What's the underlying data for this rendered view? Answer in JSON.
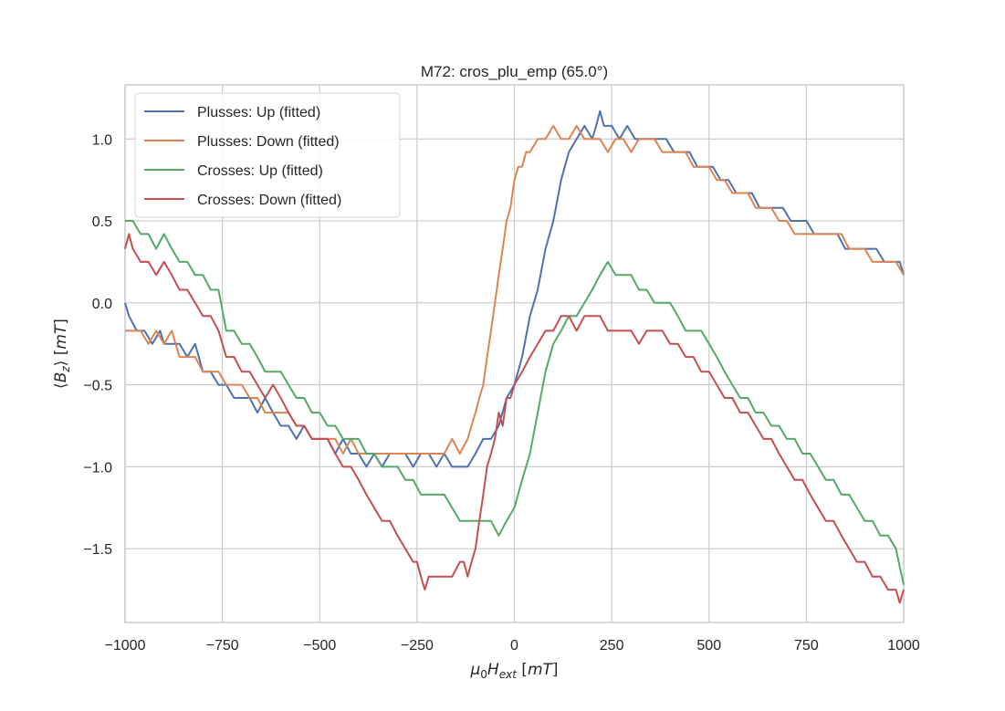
{
  "chart_data": {
    "type": "line",
    "title": "M72: cros_plu_emp (65.0°)",
    "xlabel": "μ₀H_ext [mT]",
    "ylabel": "⟨B_z⟩ [mT]",
    "xlim": [
      -1000,
      1000
    ],
    "ylim": [
      -1.95,
      1.33
    ],
    "xticks": [
      -1000,
      -750,
      -500,
      -250,
      0,
      250,
      500,
      750,
      1000
    ],
    "xtick_labels": [
      "−1000",
      "−750",
      "−500",
      "−250",
      "0",
      "250",
      "500",
      "750",
      "1000"
    ],
    "yticks": [
      1.0,
      0.5,
      0.0,
      -0.5,
      -1.0,
      -1.5
    ],
    "ytick_labels": [
      "1.0",
      "0.5",
      "0.0",
      "−0.5",
      "−1.0",
      "−1.5"
    ],
    "grid": true,
    "legend_position": "top-left",
    "series": [
      {
        "name": "Plusses: Up (fitted)",
        "color": "#4c72b0",
        "x": [
          -1000,
          -990,
          -970,
          -950,
          -930,
          -910,
          -900,
          -880,
          -860,
          -840,
          -820,
          -800,
          -780,
          -760,
          -740,
          -720,
          -700,
          -680,
          -660,
          -640,
          -620,
          -600,
          -580,
          -560,
          -540,
          -520,
          -500,
          -480,
          -460,
          -440,
          -420,
          -400,
          -380,
          -360,
          -340,
          -320,
          -300,
          -280,
          -260,
          -240,
          -220,
          -200,
          -180,
          -160,
          -140,
          -120,
          -100,
          -80,
          -60,
          -40,
          -20,
          0,
          20,
          40,
          60,
          80,
          100,
          120,
          140,
          160,
          180,
          200,
          210,
          220,
          230,
          250,
          270,
          290,
          310,
          330,
          350,
          370,
          390,
          410,
          430,
          450,
          470,
          490,
          510,
          530,
          550,
          570,
          590,
          610,
          630,
          650,
          670,
          690,
          710,
          730,
          750,
          770,
          790,
          810,
          830,
          850,
          870,
          890,
          910,
          930,
          950,
          970,
          990,
          1000
        ],
        "y": [
          0.0,
          -0.08,
          -0.17,
          -0.17,
          -0.25,
          -0.17,
          -0.25,
          -0.25,
          -0.25,
          -0.33,
          -0.25,
          -0.42,
          -0.42,
          -0.5,
          -0.5,
          -0.58,
          -0.58,
          -0.58,
          -0.67,
          -0.58,
          -0.67,
          -0.75,
          -0.75,
          -0.83,
          -0.75,
          -0.83,
          -0.83,
          -0.83,
          -0.92,
          -0.83,
          -0.92,
          -0.92,
          -1.0,
          -0.92,
          -1.0,
          -0.92,
          -0.92,
          -0.92,
          -1.0,
          -0.92,
          -0.92,
          -1.0,
          -0.92,
          -1.0,
          -1.0,
          -1.0,
          -0.92,
          -0.83,
          -0.83,
          -0.75,
          -0.58,
          -0.5,
          -0.33,
          -0.08,
          0.08,
          0.33,
          0.5,
          0.75,
          0.92,
          1.0,
          1.08,
          1.0,
          1.08,
          1.17,
          1.08,
          1.08,
          1.0,
          1.08,
          1.0,
          1.0,
          1.0,
          1.0,
          1.0,
          0.92,
          0.92,
          0.92,
          0.83,
          0.83,
          0.83,
          0.75,
          0.75,
          0.67,
          0.67,
          0.67,
          0.58,
          0.58,
          0.58,
          0.58,
          0.5,
          0.5,
          0.5,
          0.42,
          0.42,
          0.42,
          0.42,
          0.33,
          0.33,
          0.33,
          0.33,
          0.33,
          0.25,
          0.25,
          0.25,
          0.17
        ]
      },
      {
        "name": "Plusses: Down (fitted)",
        "color": "#dd8452",
        "x": [
          -1000,
          -980,
          -960,
          -940,
          -920,
          -900,
          -880,
          -860,
          -840,
          -820,
          -800,
          -780,
          -760,
          -740,
          -720,
          -700,
          -680,
          -660,
          -640,
          -620,
          -600,
          -580,
          -560,
          -540,
          -520,
          -500,
          -480,
          -460,
          -440,
          -420,
          -400,
          -380,
          -360,
          -340,
          -320,
          -300,
          -280,
          -260,
          -240,
          -220,
          -200,
          -180,
          -160,
          -140,
          -120,
          -110,
          -100,
          -90,
          -80,
          -70,
          -60,
          -50,
          -40,
          -30,
          -20,
          -10,
          0,
          10,
          20,
          30,
          40,
          60,
          80,
          100,
          120,
          140,
          160,
          180,
          200,
          220,
          240,
          260,
          280,
          300,
          320,
          340,
          360,
          380,
          400,
          420,
          440,
          460,
          480,
          500,
          520,
          540,
          560,
          580,
          600,
          620,
          640,
          660,
          680,
          700,
          720,
          740,
          760,
          780,
          800,
          820,
          840,
          860,
          880,
          900,
          920,
          940,
          960,
          980,
          1000
        ],
        "y": [
          -0.17,
          -0.17,
          -0.17,
          -0.25,
          -0.17,
          -0.25,
          -0.17,
          -0.33,
          -0.33,
          -0.33,
          -0.42,
          -0.42,
          -0.42,
          -0.5,
          -0.5,
          -0.5,
          -0.58,
          -0.58,
          -0.67,
          -0.67,
          -0.67,
          -0.67,
          -0.75,
          -0.75,
          -0.83,
          -0.83,
          -0.83,
          -0.83,
          -0.92,
          -0.83,
          -0.92,
          -0.92,
          -0.92,
          -0.92,
          -0.92,
          -0.92,
          -0.92,
          -0.92,
          -0.92,
          -0.92,
          -0.92,
          -0.92,
          -0.83,
          -0.92,
          -0.83,
          -0.75,
          -0.67,
          -0.58,
          -0.5,
          -0.33,
          -0.17,
          0.0,
          0.17,
          0.33,
          0.5,
          0.58,
          0.75,
          0.83,
          0.83,
          0.92,
          0.92,
          1.0,
          1.0,
          1.08,
          1.0,
          1.0,
          1.08,
          1.0,
          1.0,
          1.0,
          0.92,
          1.0,
          1.0,
          0.92,
          1.0,
          1.0,
          1.0,
          0.92,
          0.92,
          0.92,
          0.92,
          0.83,
          0.83,
          0.83,
          0.75,
          0.75,
          0.67,
          0.67,
          0.67,
          0.58,
          0.58,
          0.58,
          0.5,
          0.5,
          0.42,
          0.42,
          0.42,
          0.42,
          0.42,
          0.42,
          0.42,
          0.33,
          0.33,
          0.33,
          0.25,
          0.25,
          0.25,
          0.25,
          0.17
        ]
      },
      {
        "name": "Crosses: Up (fitted)",
        "color": "#55a868",
        "x": [
          -1000,
          -980,
          -960,
          -940,
          -920,
          -900,
          -880,
          -860,
          -840,
          -820,
          -800,
          -780,
          -760,
          -740,
          -720,
          -700,
          -680,
          -660,
          -640,
          -620,
          -600,
          -580,
          -560,
          -540,
          -520,
          -500,
          -480,
          -460,
          -440,
          -420,
          -400,
          -380,
          -360,
          -340,
          -320,
          -300,
          -280,
          -260,
          -240,
          -220,
          -200,
          -180,
          -160,
          -140,
          -120,
          -100,
          -80,
          -60,
          -40,
          -20,
          0,
          20,
          40,
          60,
          80,
          100,
          120,
          140,
          160,
          180,
          200,
          220,
          240,
          260,
          280,
          300,
          320,
          340,
          360,
          380,
          400,
          420,
          440,
          460,
          480,
          500,
          520,
          540,
          560,
          580,
          600,
          620,
          640,
          660,
          680,
          700,
          720,
          740,
          760,
          780,
          800,
          820,
          840,
          860,
          880,
          900,
          920,
          940,
          960,
          980,
          1000
        ],
        "y": [
          0.5,
          0.5,
          0.42,
          0.42,
          0.33,
          0.42,
          0.33,
          0.25,
          0.25,
          0.17,
          0.17,
          0.08,
          0.08,
          -0.17,
          -0.17,
          -0.25,
          -0.25,
          -0.33,
          -0.42,
          -0.42,
          -0.42,
          -0.5,
          -0.58,
          -0.58,
          -0.67,
          -0.67,
          -0.75,
          -0.75,
          -0.83,
          -0.83,
          -0.83,
          -0.92,
          -0.92,
          -1.0,
          -1.0,
          -1.0,
          -1.08,
          -1.08,
          -1.17,
          -1.17,
          -1.17,
          -1.17,
          -1.25,
          -1.33,
          -1.33,
          -1.33,
          -1.33,
          -1.33,
          -1.42,
          -1.33,
          -1.25,
          -1.08,
          -0.92,
          -0.67,
          -0.42,
          -0.25,
          -0.17,
          -0.08,
          -0.08,
          0.0,
          0.08,
          0.17,
          0.25,
          0.17,
          0.17,
          0.17,
          0.08,
          0.08,
          0.0,
          0.0,
          0.0,
          -0.08,
          -0.17,
          -0.17,
          -0.17,
          -0.25,
          -0.33,
          -0.42,
          -0.5,
          -0.58,
          -0.58,
          -0.67,
          -0.67,
          -0.75,
          -0.75,
          -0.83,
          -0.83,
          -0.92,
          -0.92,
          -1.0,
          -1.08,
          -1.08,
          -1.17,
          -1.17,
          -1.25,
          -1.33,
          -1.33,
          -1.42,
          -1.42,
          -1.5,
          -1.72
        ]
      },
      {
        "name": "Crosses: Down (fitted)",
        "color": "#c44e52",
        "x": [
          -1000,
          -990,
          -980,
          -960,
          -940,
          -920,
          -900,
          -880,
          -860,
          -840,
          -820,
          -800,
          -780,
          -760,
          -740,
          -720,
          -700,
          -680,
          -660,
          -640,
          -620,
          -600,
          -580,
          -560,
          -540,
          -520,
          -500,
          -480,
          -460,
          -440,
          -420,
          -400,
          -380,
          -360,
          -340,
          -320,
          -300,
          -280,
          -260,
          -250,
          -240,
          -230,
          -220,
          -200,
          -180,
          -160,
          -140,
          -130,
          -120,
          -110,
          -100,
          -90,
          -80,
          -70,
          -60,
          -50,
          -40,
          -30,
          -20,
          -10,
          0,
          20,
          40,
          60,
          80,
          100,
          120,
          140,
          160,
          180,
          200,
          220,
          240,
          260,
          280,
          300,
          320,
          340,
          360,
          380,
          400,
          420,
          440,
          460,
          480,
          500,
          520,
          540,
          560,
          580,
          600,
          620,
          640,
          660,
          680,
          700,
          720,
          740,
          760,
          780,
          800,
          820,
          840,
          860,
          880,
          900,
          920,
          940,
          960,
          980,
          990,
          1000
        ],
        "y": [
          0.33,
          0.42,
          0.33,
          0.25,
          0.25,
          0.17,
          0.25,
          0.17,
          0.08,
          0.08,
          0.0,
          -0.08,
          -0.08,
          -0.17,
          -0.33,
          -0.33,
          -0.42,
          -0.42,
          -0.5,
          -0.58,
          -0.5,
          -0.58,
          -0.67,
          -0.75,
          -0.75,
          -0.83,
          -0.83,
          -0.83,
          -0.92,
          -1.0,
          -1.0,
          -1.08,
          -1.17,
          -1.25,
          -1.33,
          -1.33,
          -1.42,
          -1.5,
          -1.58,
          -1.58,
          -1.67,
          -1.75,
          -1.67,
          -1.67,
          -1.67,
          -1.67,
          -1.58,
          -1.58,
          -1.67,
          -1.58,
          -1.5,
          -1.33,
          -1.17,
          -1.0,
          -0.92,
          -0.83,
          -0.67,
          -0.75,
          -0.58,
          -0.58,
          -0.5,
          -0.42,
          -0.33,
          -0.25,
          -0.17,
          -0.17,
          -0.08,
          -0.08,
          -0.17,
          -0.08,
          -0.08,
          -0.08,
          -0.17,
          -0.17,
          -0.17,
          -0.17,
          -0.25,
          -0.17,
          -0.17,
          -0.17,
          -0.25,
          -0.25,
          -0.33,
          -0.33,
          -0.42,
          -0.42,
          -0.5,
          -0.58,
          -0.58,
          -0.67,
          -0.67,
          -0.75,
          -0.83,
          -0.83,
          -0.92,
          -1.0,
          -1.08,
          -1.08,
          -1.17,
          -1.25,
          -1.33,
          -1.33,
          -1.42,
          -1.5,
          -1.58,
          -1.58,
          -1.67,
          -1.67,
          -1.75,
          -1.75,
          -1.83,
          -1.75
        ]
      }
    ]
  }
}
